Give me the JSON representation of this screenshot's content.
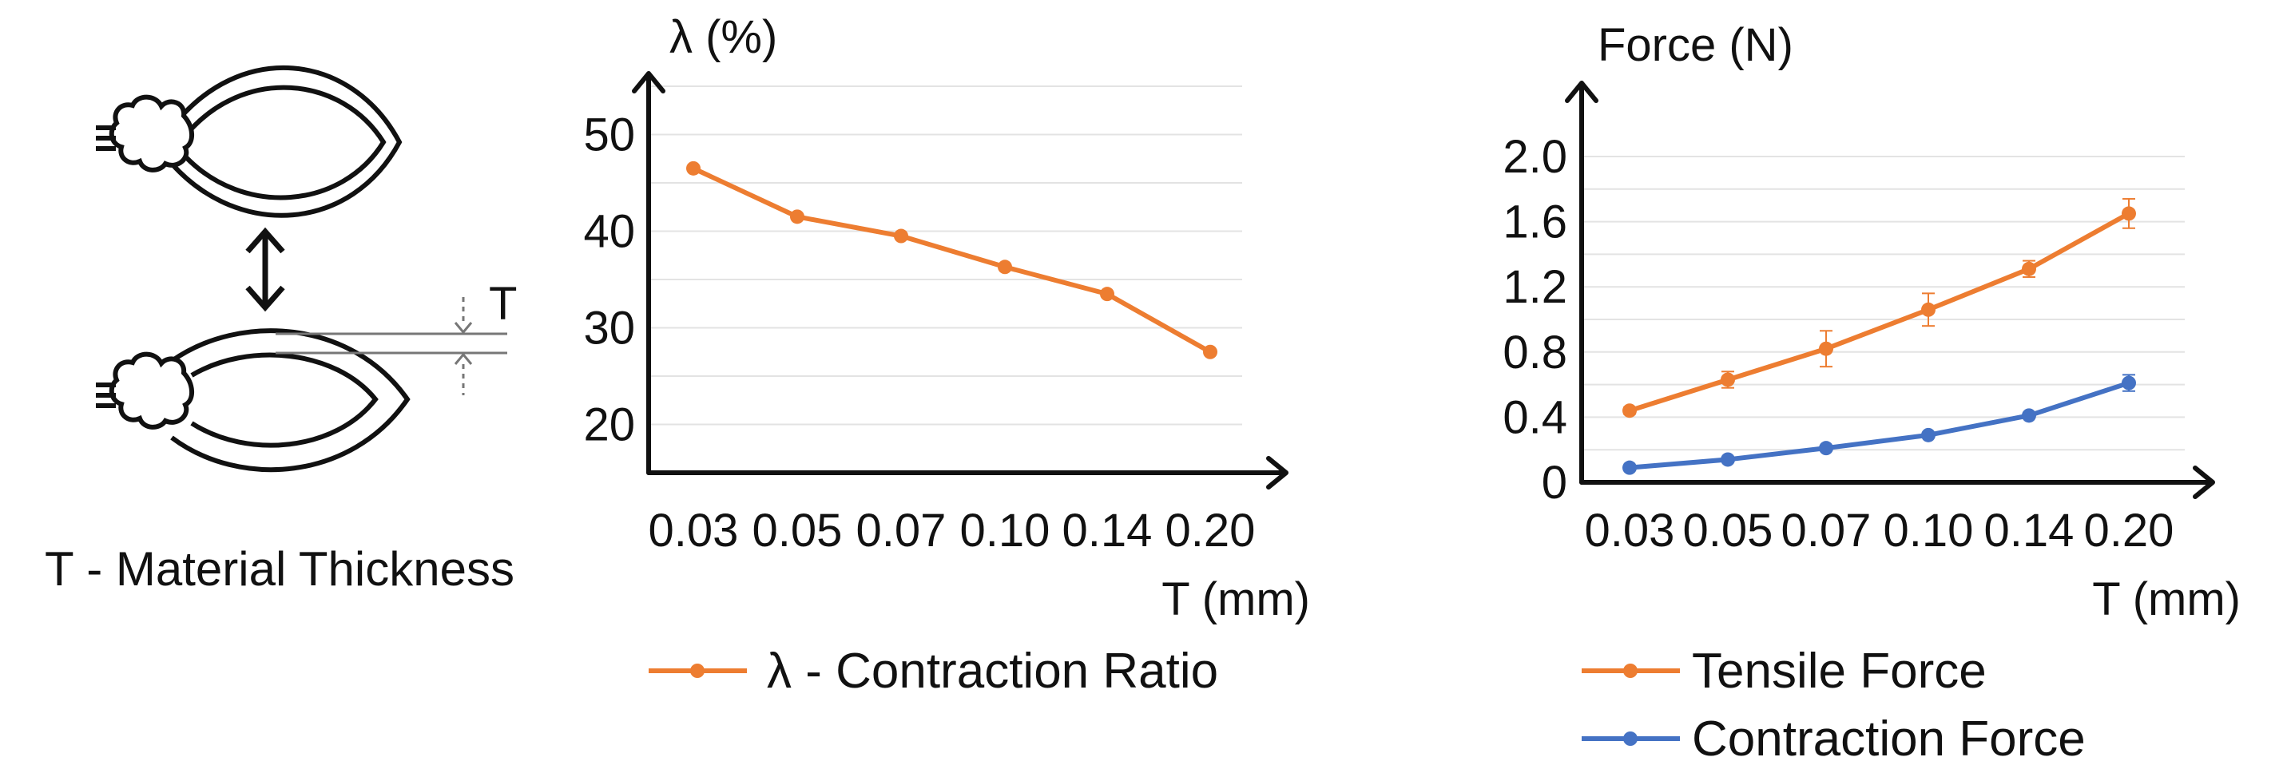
{
  "illustration": {
    "thickness_symbol": "T",
    "caption": "T - Material Thickness"
  },
  "chart_data": [
    {
      "type": "line",
      "categories": [
        "0.03",
        "0.05",
        "0.07",
        "0.10",
        "0.14",
        "0.20"
      ],
      "series": [
        {
          "name": "λ - Contraction Ratio",
          "values": [
            46.5,
            41.5,
            39.5,
            36.3,
            33.5,
            27.5
          ],
          "color": "#ED7D31"
        }
      ],
      "ylabel": "λ (%)",
      "xlabel": "T (mm)",
      "yticks": [
        "20",
        "30",
        "40",
        "50"
      ],
      "ylim": [
        15,
        55
      ],
      "grid": true,
      "legend_placement": "bottom-left"
    },
    {
      "type": "line",
      "categories": [
        "0.03",
        "0.05",
        "0.07",
        "0.10",
        "0.14",
        "0.20"
      ],
      "series": [
        {
          "name": "Tensile Force",
          "values": [
            0.44,
            0.63,
            0.82,
            1.06,
            1.31,
            1.65
          ],
          "error": [
            0.02,
            0.05,
            0.11,
            0.1,
            0.05,
            0.09
          ],
          "color": "#ED7D31"
        },
        {
          "name": "Contraction Force",
          "values": [
            0.09,
            0.14,
            0.21,
            0.29,
            0.41,
            0.61
          ],
          "error": [
            0.0,
            0.0,
            0.0,
            0.0,
            0.0,
            0.05
          ],
          "color": "#4472C4"
        }
      ],
      "ylabel": "Force (N)",
      "xlabel": "T (mm)",
      "yticks": [
        "0",
        "0.4",
        "0.8",
        "1.2",
        "1.6",
        "2.0"
      ],
      "ylim": [
        0,
        2.0
      ],
      "grid": true,
      "legend_placement": "bottom-left"
    }
  ]
}
